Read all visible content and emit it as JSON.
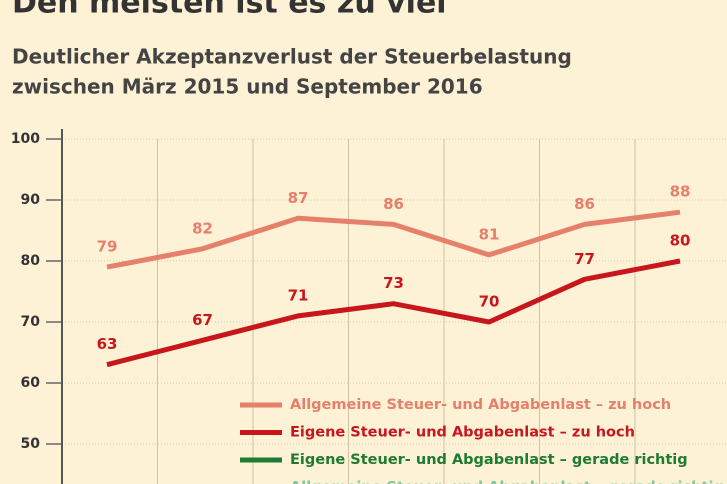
{
  "chart_data": {
    "type": "line",
    "title": "Den meisten ist es zu viel",
    "subtitle": [
      "Deutlicher Akzeptanzverlust der Steuerbelastung",
      "zwischen März 2015 und September 2016"
    ],
    "categories": [
      null,
      null,
      null,
      null,
      null,
      null,
      null
    ],
    "series": [
      {
        "name": "Allgemeine Steuer- und Abgabenlast – zu hoch",
        "color": "#e5806a",
        "values": [
          79,
          82,
          87,
          86,
          81,
          86,
          88
        ]
      },
      {
        "name": "Eigene Steuer- und Abgabenlast – zu hoch",
        "color": "#c8161d",
        "values": [
          63,
          67,
          71,
          73,
          70,
          77,
          80
        ]
      },
      {
        "name": "Eigene Steuer- und Abgabenlast – gerade richtig",
        "color": "#1f7a32",
        "values": [
          null,
          null,
          null,
          null,
          null,
          null,
          null
        ]
      },
      {
        "name": "Allgemeine Steuer- und Abgabenlast – gerade richtig",
        "color": "#86c49a",
        "values": [
          null,
          null,
          null,
          null,
          null,
          null,
          null
        ]
      }
    ],
    "ylim": [
      40,
      100
    ],
    "yticks": [
      50,
      60,
      70,
      80,
      90,
      100
    ],
    "grid": true
  }
}
